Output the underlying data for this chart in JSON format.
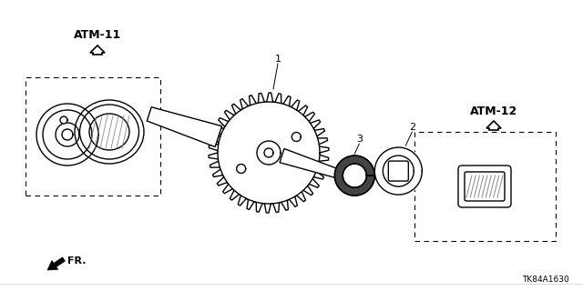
{
  "bg_color": "#ffffff",
  "black": "#000000",
  "gray": "#888888",
  "darkgray": "#444444",
  "label_atm11": "ATM-11",
  "label_atm12": "ATM-12",
  "label_fr": "FR.",
  "label_1": "1",
  "label_2": "2",
  "label_3": "3",
  "ref_code": "TK84A1630",
  "fig_width": 6.4,
  "fig_height": 3.2,
  "dpi": 100
}
